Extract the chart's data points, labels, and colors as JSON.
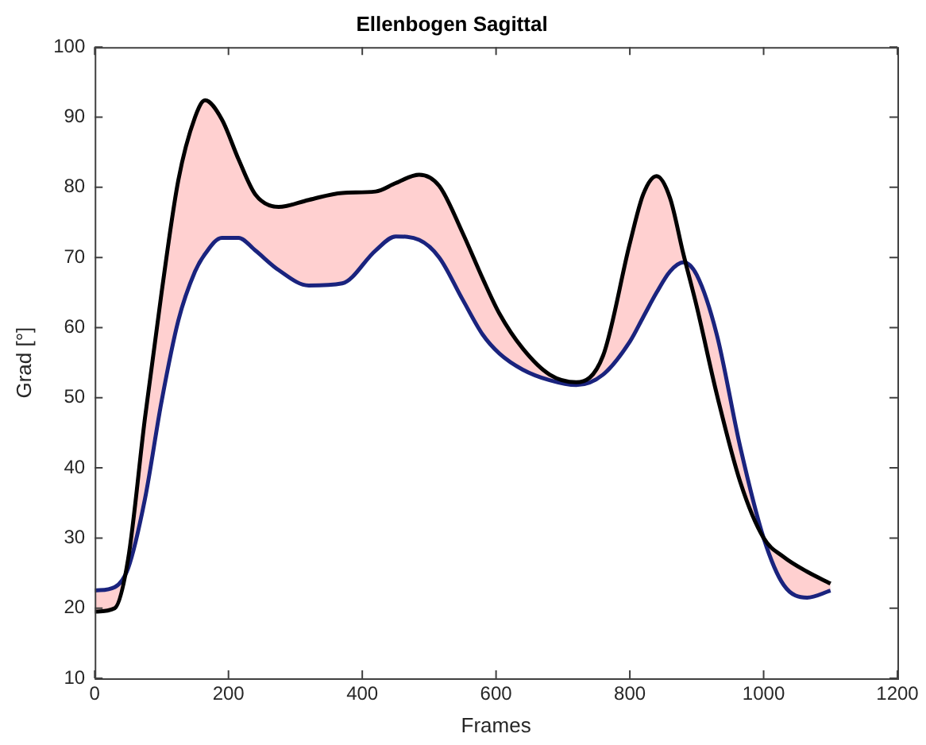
{
  "chart_data": {
    "type": "line",
    "title": "Ellenbogen Sagittal",
    "xlabel": "Frames",
    "ylabel": "Grad [°]",
    "x": [
      0,
      30,
      50,
      75,
      100,
      125,
      150,
      165,
      190,
      215,
      240,
      275,
      320,
      370,
      420,
      450,
      485,
      515,
      550,
      580,
      605,
      640,
      680,
      720,
      760,
      800,
      820,
      840,
      860,
      880,
      900,
      930,
      965,
      1000,
      1030,
      1065,
      1100
    ],
    "series": [
      {
        "color": "#000000",
        "values": [
          19.5,
          20,
          27,
          47,
          65,
          81,
          90,
          92.4,
          89.7,
          84,
          79,
          77.2,
          78.2,
          79.2,
          79.4,
          80.6,
          81.8,
          80.2,
          73.5,
          67,
          62,
          57,
          53.3,
          52.2,
          56,
          72,
          79,
          81.6,
          78.5,
          70.5,
          63,
          50.5,
          38,
          30,
          27.3,
          25.2,
          23.5
        ]
      },
      {
        "color": "#1a237e",
        "values": [
          22.5,
          23,
          25.7,
          35.5,
          49.5,
          61,
          68,
          70.5,
          72.8,
          72.8,
          71,
          68.2,
          66,
          66.3,
          71,
          73,
          72.5,
          70,
          64,
          59,
          56.3,
          54,
          52.5,
          51.8,
          53.3,
          58,
          61.5,
          65,
          68,
          69.3,
          67.5,
          59,
          43,
          30,
          23.3,
          21.5,
          22.5
        ]
      }
    ],
    "xlim": [
      0,
      1200
    ],
    "xticks": [
      0,
      200,
      400,
      600,
      800,
      1000,
      1200
    ],
    "ylim": [
      10,
      100
    ],
    "yticks": [
      10,
      20,
      30,
      40,
      50,
      60,
      70,
      80,
      90,
      100
    ],
    "grid": false,
    "legend": false,
    "marker": "none",
    "line_style": "solid"
  }
}
